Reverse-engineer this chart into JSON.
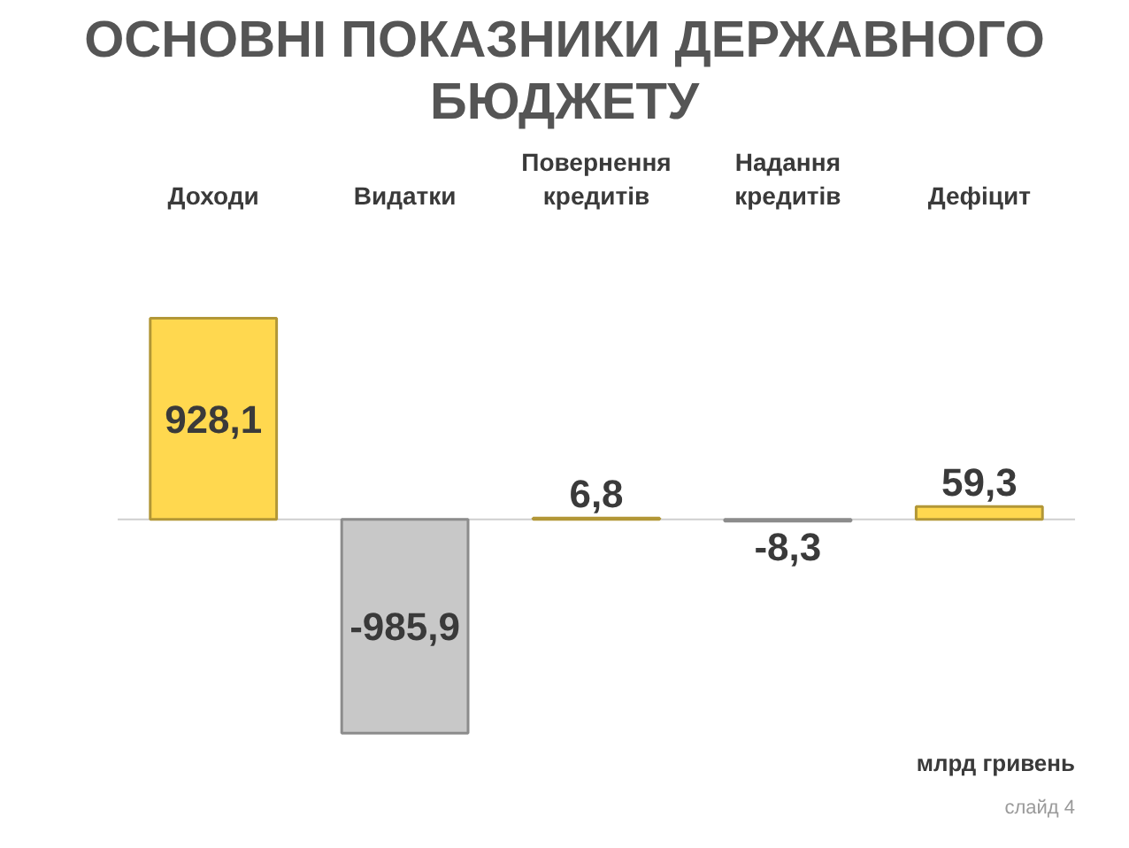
{
  "chart_data": {
    "type": "bar",
    "title": "ОСНОВНІ ПОКАЗНИКИ ДЕРЖАВНОГО БЮДЖЕТУ",
    "categories": [
      "Доходи",
      "Видатки",
      "Повернення кредитів",
      "Надання кредитів",
      "Дефіцит"
    ],
    "values": [
      928.1,
      -985.9,
      6.8,
      -8.3,
      59.3
    ],
    "colors": [
      "#ffd84f",
      "#c8c8c8",
      "#ffd84f",
      "#c8c8c8",
      "#ffd84f"
    ],
    "value_labels": [
      "928,1",
      "-985,9",
      "6,8",
      "-8,3",
      "59,3"
    ],
    "tick_labels": "x",
    "annotations": [
      "млрд гривень",
      "слайд 4"
    ]
  }
}
